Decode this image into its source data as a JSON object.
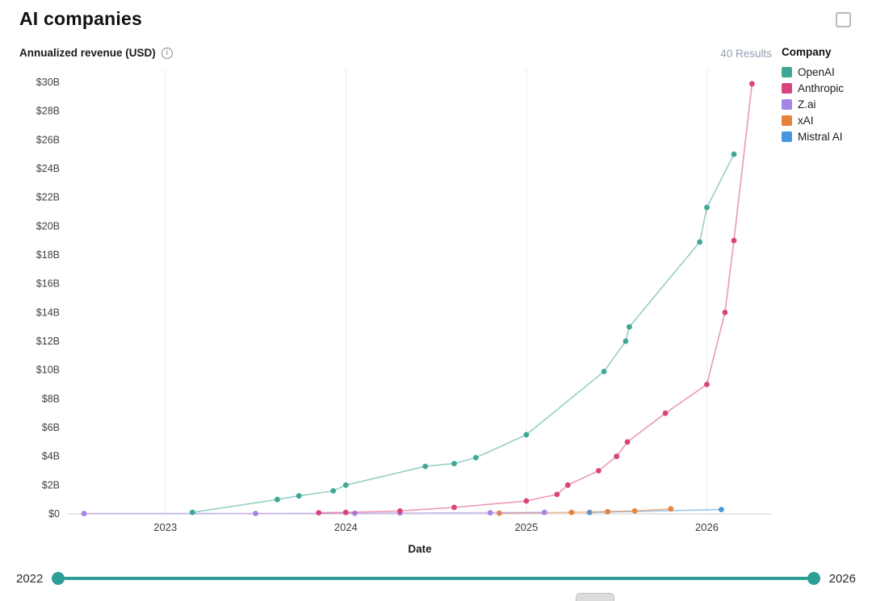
{
  "page": {
    "title": "AI companies"
  },
  "header": {
    "metric_label": "Annualized revenue (USD)",
    "results_label": "40 Results",
    "legend_title": "Company"
  },
  "slider": {
    "min_label": "2022",
    "max_label": "2026",
    "color": "#2d9e96"
  },
  "colors": {
    "openai": "#3fa796",
    "anthropic": "#d9437e",
    "zai": "#a585e6",
    "xai": "#e8813c",
    "mistral": "#4598e0",
    "results_text": "#94a1b7",
    "gridline": "#ebebeb"
  },
  "chart_data": {
    "type": "line",
    "title": "AI companies",
    "xlabel": "Date",
    "ylabel": "Annualized revenue (USD)",
    "xlim": [
      2022.46,
      2026.36
    ],
    "ylim": [
      0,
      31
    ],
    "x_ticks": [
      2023,
      2024,
      2025,
      2026
    ],
    "y_tick_step": 2,
    "y_tick_max": 30,
    "y_tick_labels": [
      "$0",
      "$2B",
      "$4B",
      "$6B",
      "$8B",
      "$10B",
      "$12B",
      "$14B",
      "$16B",
      "$18B",
      "$20B",
      "$22B",
      "$24B",
      "$26B",
      "$28B",
      "$30B"
    ],
    "grid": "vertical-only",
    "legend_position": "right",
    "series": [
      {
        "name": "OpenAI",
        "color": "#3fa796",
        "points": [
          [
            2023.15,
            0.1
          ],
          [
            2023.62,
            1.0
          ],
          [
            2023.74,
            1.25
          ],
          [
            2023.93,
            1.6
          ],
          [
            2024.0,
            2.0
          ],
          [
            2024.44,
            3.3
          ],
          [
            2024.6,
            3.5
          ],
          [
            2024.72,
            3.9
          ],
          [
            2025.0,
            5.5
          ],
          [
            2025.43,
            9.9
          ],
          [
            2025.55,
            12.0
          ],
          [
            2025.57,
            13.0
          ],
          [
            2025.96,
            18.9
          ],
          [
            2026.0,
            21.3
          ],
          [
            2026.15,
            25.0
          ]
        ]
      },
      {
        "name": "Anthropic",
        "color": "#d9437e",
        "points": [
          [
            2023.85,
            0.08
          ],
          [
            2024.0,
            0.1
          ],
          [
            2024.3,
            0.2
          ],
          [
            2024.6,
            0.45
          ],
          [
            2025.0,
            0.9
          ],
          [
            2025.17,
            1.35
          ],
          [
            2025.23,
            2.0
          ],
          [
            2025.4,
            3.0
          ],
          [
            2025.5,
            4.0
          ],
          [
            2025.56,
            5.0
          ],
          [
            2025.77,
            7.0
          ],
          [
            2026.0,
            9.0
          ],
          [
            2026.1,
            14.0
          ],
          [
            2026.15,
            19.0
          ],
          [
            2026.25,
            29.9
          ]
        ]
      },
      {
        "name": "Z.ai",
        "color": "#a585e6",
        "points": [
          [
            2022.55,
            0.02
          ],
          [
            2023.5,
            0.03
          ],
          [
            2024.05,
            0.04
          ],
          [
            2024.3,
            0.06
          ],
          [
            2024.8,
            0.08
          ],
          [
            2025.1,
            0.1
          ]
        ]
      },
      {
        "name": "xAI",
        "color": "#e8813c",
        "points": [
          [
            2024.85,
            0.05
          ],
          [
            2025.25,
            0.1
          ],
          [
            2025.45,
            0.15
          ],
          [
            2025.6,
            0.2
          ],
          [
            2025.8,
            0.35
          ]
        ]
      },
      {
        "name": "Mistral AI",
        "color": "#4598e0",
        "points": [
          [
            2025.35,
            0.1
          ],
          [
            2026.08,
            0.3
          ]
        ]
      }
    ]
  }
}
